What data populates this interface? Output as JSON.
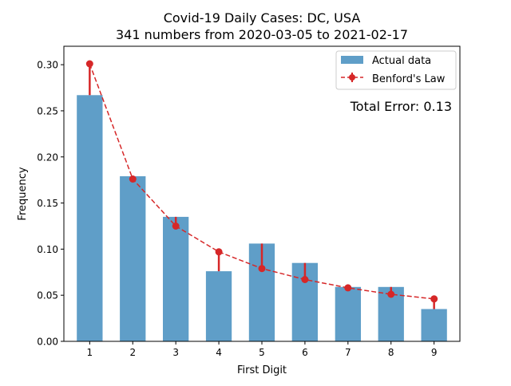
{
  "chart_data": {
    "type": "bar",
    "title": "Covid-19 Daily Cases: DC, USA",
    "subtitle": "341 numbers from 2020-03-05 to 2021-02-17",
    "xlabel": "First Digit",
    "ylabel": "Frequency",
    "categories": [
      "1",
      "2",
      "3",
      "4",
      "5",
      "6",
      "7",
      "8",
      "9"
    ],
    "ylim": [
      0,
      0.32
    ],
    "yticks": [
      "0.00",
      "0.05",
      "0.10",
      "0.15",
      "0.20",
      "0.25",
      "0.30"
    ],
    "grid": false,
    "legend_position": "top-right",
    "series": [
      {
        "name": "Actual data",
        "kind": "bar",
        "color": "#5f9ec8",
        "values": [
          0.267,
          0.179,
          0.135,
          0.076,
          0.106,
          0.085,
          0.059,
          0.059,
          0.035
        ]
      },
      {
        "name": "Benford's Law",
        "kind": "line-errorbar",
        "color": "#d62728",
        "style": "dashed",
        "marker": "circle",
        "values": [
          0.301,
          0.176,
          0.125,
          0.097,
          0.079,
          0.067,
          0.058,
          0.051,
          0.046
        ]
      }
    ],
    "annotation": {
      "text": "Total Error: 0.13",
      "color": "#d62728",
      "position": "top-right"
    }
  }
}
